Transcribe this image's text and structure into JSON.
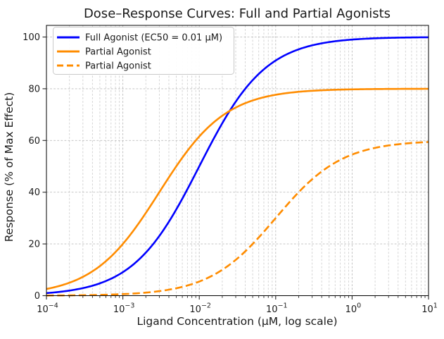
{
  "chart_data": {
    "type": "line",
    "title": "Dose–Response Curves: Full and Partial Agonists",
    "xlabel": "Ligand Concentration (μM, log scale)",
    "ylabel": "Response (% of Max Effect)",
    "x_scale": "log10",
    "xlim_log10": [
      -4,
      1
    ],
    "ylim": [
      0,
      104.5
    ],
    "grid": "major and minor, dashed light gray",
    "legend_position": "upper left",
    "x_ticks": [
      {
        "log10": -4,
        "mantissa": "10",
        "exponent": "−4"
      },
      {
        "log10": -3,
        "mantissa": "10",
        "exponent": "−3"
      },
      {
        "log10": -2,
        "mantissa": "10",
        "exponent": "−2"
      },
      {
        "log10": -1,
        "mantissa": "10",
        "exponent": "−1"
      },
      {
        "log10": 0,
        "mantissa": "10",
        "exponent": "0"
      },
      {
        "log10": 1,
        "mantissa": "10",
        "exponent": "1"
      }
    ],
    "y_ticks": [
      0,
      20,
      40,
      60,
      80,
      100
    ],
    "x_uM_at_decades": [
      0.0001,
      0.001,
      0.01,
      0.1,
      1,
      10
    ],
    "series": [
      {
        "name": "Full Agonist (EC50 = 0.01 μM)",
        "color": "#0000FF",
        "line_style": "solid",
        "line_width": 2.6,
        "model": "hill",
        "emax_percent": 100,
        "ec50_uM": 0.01,
        "hill_coefficient": 1,
        "response_at_decades": [
          0.99,
          9.09,
          50.0,
          90.91,
          99.01,
          99.9
        ]
      },
      {
        "name": "Partial Agonist",
        "color": "#FF8C00",
        "line_style": "solid",
        "line_width": 2.6,
        "model": "hill",
        "emax_percent": 80,
        "ec50_uM": 0.003,
        "hill_coefficient": 1,
        "response_at_decades": [
          2.58,
          20.0,
          61.54,
          77.67,
          79.76,
          79.98
        ]
      },
      {
        "name": "Partial Agonist",
        "color": "#FF8C00",
        "line_style": "dashed",
        "line_width": 2.6,
        "model": "hill",
        "emax_percent": 60,
        "ec50_uM": 0.1,
        "hill_coefficient": 1,
        "response_at_decades": [
          0.06,
          0.59,
          5.45,
          30.0,
          54.55,
          59.41
        ]
      }
    ]
  },
  "colors": {
    "grid_major": "#bdbdbd",
    "grid_minor": "#d0d0d0",
    "tick": "#262626",
    "dashed_pattern": "10.5,4.8"
  }
}
